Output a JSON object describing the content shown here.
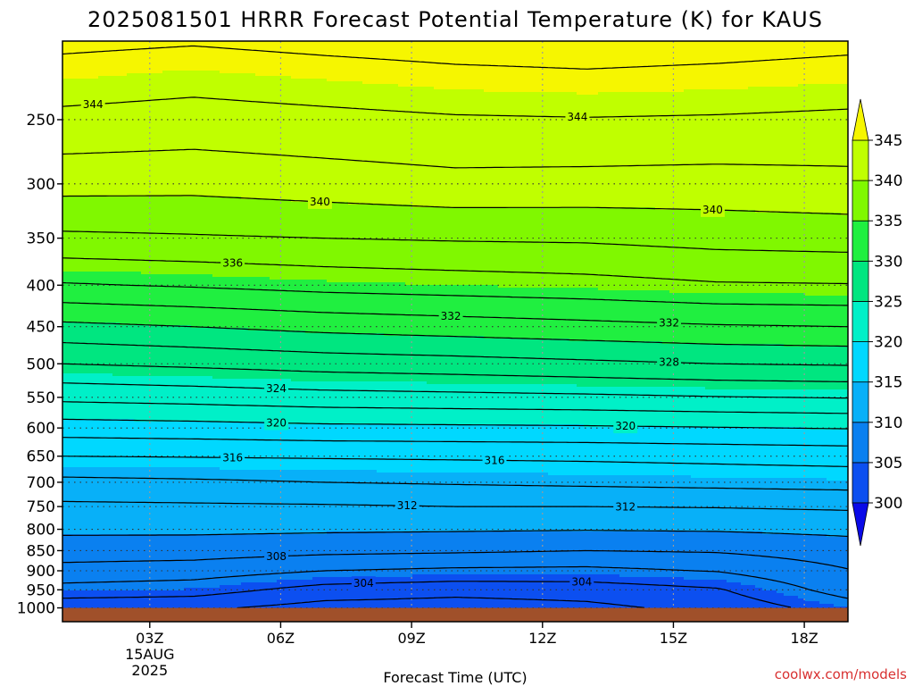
{
  "chart_data": {
    "type": "contour",
    "title": "2025081501 HRRR Forecast Potential Temperature (K) for KAUS",
    "xlabel": "Forecast Time (UTC)",
    "ylabel": "",
    "watermark": "coolwx.com/models",
    "x_axis": {
      "unit": "hours since 2025-08-15 00Z",
      "range": [
        1,
        19
      ],
      "ticks": [
        {
          "x": 3,
          "label": "03Z",
          "sub1": "15AUG",
          "sub2": "2025"
        },
        {
          "x": 6,
          "label": "06Z"
        },
        {
          "x": 9,
          "label": "09Z"
        },
        {
          "x": 12,
          "label": "12Z"
        },
        {
          "x": 15,
          "label": "15Z"
        },
        {
          "x": 18,
          "label": "18Z"
        }
      ]
    },
    "y_axis": {
      "unit": "hPa",
      "scale": "log",
      "range": [
        1040,
        200
      ],
      "ticks": [
        1000,
        950,
        900,
        850,
        800,
        750,
        700,
        650,
        600,
        550,
        500,
        450,
        400,
        350,
        300,
        250
      ]
    },
    "colorbar": {
      "levels": [
        300,
        305,
        310,
        315,
        320,
        325,
        330,
        335,
        340,
        345
      ],
      "labels": [
        "300",
        "305",
        "310",
        "315",
        "320",
        "325",
        "330",
        "335",
        "340",
        "345"
      ],
      "colors": [
        "#0a0ae8",
        "#0c4ff0",
        "#0a80f0",
        "#08b0f8",
        "#00d8ff",
        "#00f0c8",
        "#00e680",
        "#20ef40",
        "#80f800",
        "#c0ff00",
        "#f6f600"
      ]
    },
    "profile_times": [
      1,
      4,
      7,
      10,
      13,
      16,
      19
    ],
    "profiles": [
      {
        "p": 1000,
        "theta": [
          302.5,
          302.4,
          301.2,
          301.0,
          301.5,
          302.6,
          305.0
        ]
      },
      {
        "p": 950,
        "theta": [
          305.3,
          304.9,
          303.2,
          302.7,
          302.9,
          303.8,
          306.9
        ]
      },
      {
        "p": 900,
        "theta": [
          307.3,
          307.0,
          306.0,
          305.6,
          305.5,
          306.1,
          307.9
        ]
      },
      {
        "p": 850,
        "theta": [
          309.0,
          308.9,
          308.5,
          308.3,
          308.0,
          308.2,
          309.0
        ]
      },
      {
        "p": 800,
        "theta": [
          310.4,
          310.4,
          310.3,
          310.2,
          310.1,
          310.2,
          310.5
        ]
      },
      {
        "p": 750,
        "theta": [
          311.6,
          311.7,
          311.8,
          312.0,
          312.0,
          312.1,
          312.3
        ]
      },
      {
        "p": 700,
        "theta": [
          313.5,
          313.7,
          314.0,
          314.2,
          314.4,
          314.6,
          314.8
        ]
      },
      {
        "p": 650,
        "theta": [
          316.0,
          316.1,
          316.2,
          316.3,
          316.4,
          316.6,
          316.8
        ]
      },
      {
        "p": 600,
        "theta": [
          319.0,
          319.2,
          319.5,
          319.6,
          319.7,
          319.9,
          320.1
        ]
      },
      {
        "p": 550,
        "theta": [
          322.5,
          322.8,
          323.2,
          323.4,
          323.6,
          323.9,
          324.1
        ]
      },
      {
        "p": 500,
        "theta": [
          326.0,
          326.4,
          326.9,
          327.2,
          327.6,
          328.0,
          328.2
        ]
      },
      {
        "p": 450,
        "theta": [
          329.5,
          330.0,
          330.6,
          331.0,
          331.4,
          331.8,
          332.0
        ]
      },
      {
        "p": 400,
        "theta": [
          333.8,
          334.2,
          334.7,
          335.0,
          335.3,
          335.8,
          335.9
        ]
      },
      {
        "p": 350,
        "theta": [
          337.6,
          337.8,
          338.0,
          338.2,
          338.3,
          338.7,
          338.9
        ]
      },
      {
        "p": 300,
        "theta": [
          340.7,
          340.6,
          341.0,
          341.4,
          341.3,
          341.2,
          341.4
        ]
      },
      {
        "p": 250,
        "theta": [
          343.5,
          343.2,
          343.5,
          343.8,
          343.9,
          343.8,
          343.6
        ]
      },
      {
        "p": 220,
        "theta": [
          345.2,
          344.8,
          345.2,
          345.6,
          345.8,
          345.6,
          345.3
        ]
      },
      {
        "p": 200,
        "theta": [
          346.5,
          346.2,
          346.6,
          346.9,
          347.0,
          346.8,
          346.5
        ]
      }
    ],
    "contour_interval": 2,
    "contour_labels": [
      {
        "value": 344,
        "x": 1.7
      },
      {
        "value": 344,
        "x": 12.8
      },
      {
        "value": 340,
        "x": 6.9
      },
      {
        "value": 340,
        "x": 15.9
      },
      {
        "value": 336,
        "x": 4.9
      },
      {
        "value": 332,
        "x": 9.9
      },
      {
        "value": 332,
        "x": 14.9
      },
      {
        "value": 328,
        "x": 14.9
      },
      {
        "value": 324,
        "x": 5.9
      },
      {
        "value": 320,
        "x": 5.9
      },
      {
        "value": 320,
        "x": 13.9
      },
      {
        "value": 316,
        "x": 4.9
      },
      {
        "value": 316,
        "x": 10.9
      },
      {
        "value": 312,
        "x": 8.9
      },
      {
        "value": 312,
        "x": 13.9
      },
      {
        "value": 308,
        "x": 5.9
      },
      {
        "value": 304,
        "x": 7.9
      },
      {
        "value": 304,
        "x": 12.9
      }
    ],
    "ground_color": "#a0502a",
    "grid": true
  }
}
